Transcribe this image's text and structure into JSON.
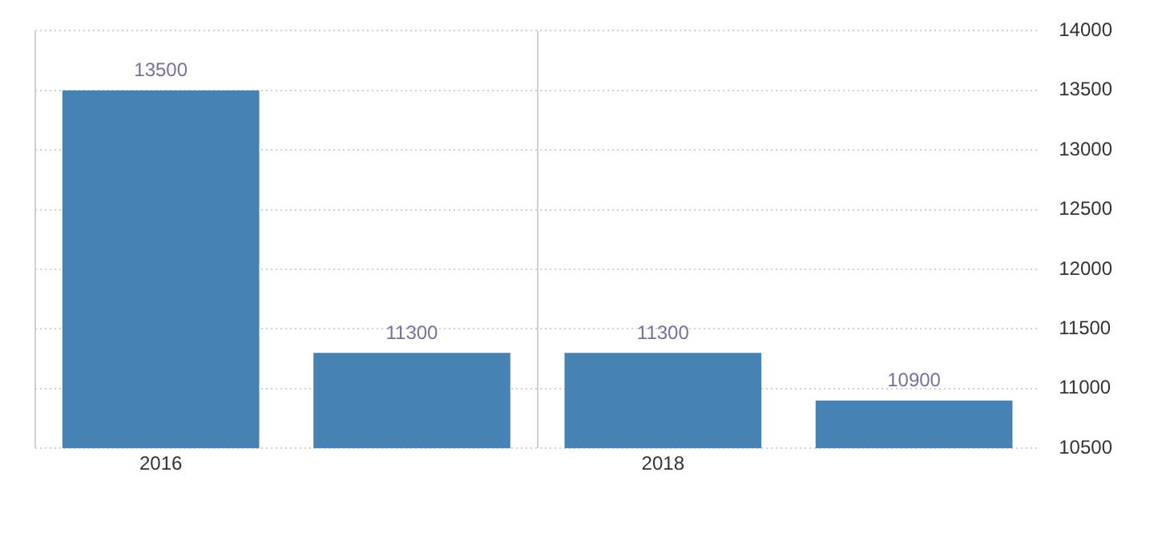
{
  "chart_data": {
    "type": "bar",
    "categories": [
      "2016",
      null,
      "2018",
      null
    ],
    "values": [
      13500,
      11300,
      11300,
      10900
    ],
    "color": "#4682b4",
    "ylim": [
      10500,
      14000
    ],
    "yticks": [
      10500,
      11000,
      11500,
      12000,
      12500,
      13000,
      13500,
      14000
    ],
    "grid": true,
    "data_labels": true
  }
}
